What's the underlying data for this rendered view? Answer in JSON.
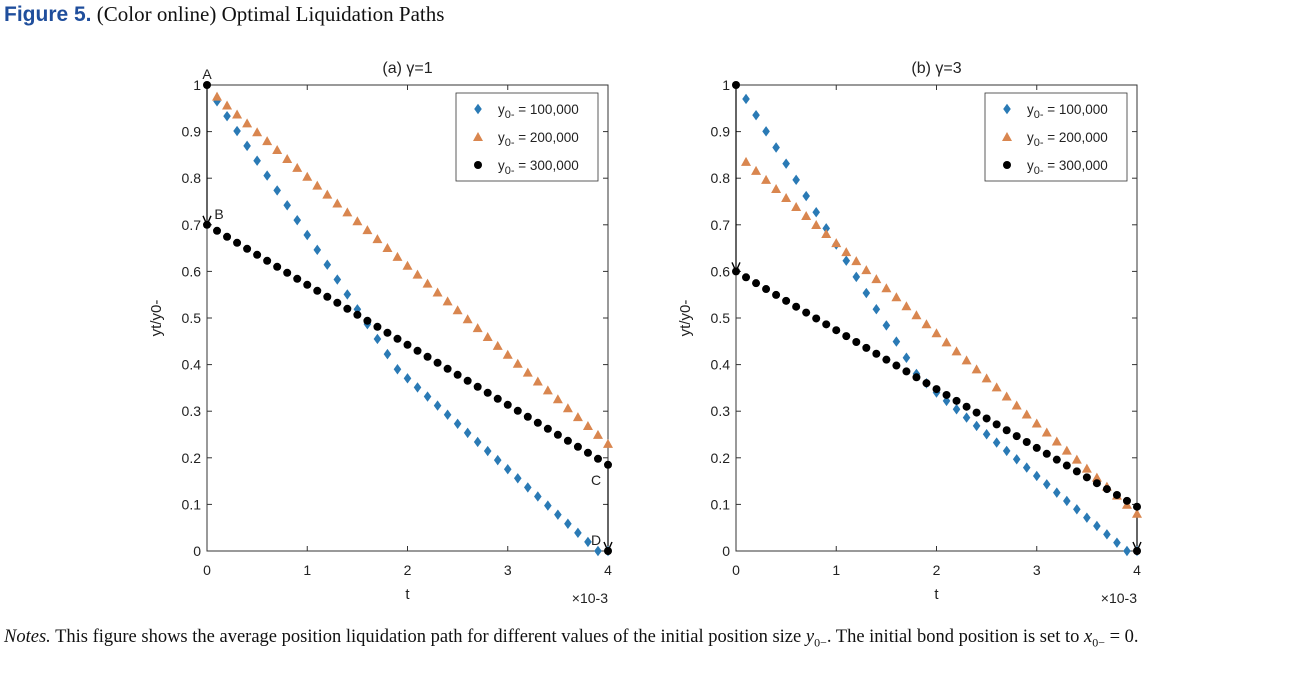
{
  "figure": {
    "label": "Figure 5.",
    "caption": "(Color online) Optimal Liquidation Paths"
  },
  "notes": {
    "label": "Notes.",
    "text_1": "This figure shows the average position liquidation path for different values of the initial position size",
    "var_1": "y",
    "var_1_sub": "0−",
    "text_2": ". The initial bond position is set to",
    "var_2": "x",
    "var_2_sub": "0−",
    "text_3": " = 0."
  },
  "colors": {
    "series_1": "#2a7ab5",
    "series_2": "#d9864f",
    "series_3": "#000000"
  },
  "chart_data": [
    {
      "type": "scatter",
      "title": "(a) γ=1",
      "xlabel": "t",
      "ylabel": "yt/y0-",
      "x_exponent_label": "×10-3",
      "xlim": [
        0,
        4
      ],
      "ylim": [
        0,
        1
      ],
      "xticks": [
        0,
        1,
        2,
        3,
        4
      ],
      "yticks": [
        0,
        0.1,
        0.2,
        0.3,
        0.4,
        0.5,
        0.6,
        0.7,
        0.8,
        0.9,
        1
      ],
      "ytick_labels": [
        "0",
        "0.1",
        "0.2",
        "0.3",
        "0.4",
        "0.5",
        "0.6",
        "0.7",
        "0.8",
        "0.9",
        "1"
      ],
      "grid": false,
      "legend_position": "top-right",
      "series": [
        {
          "name": "y0- = 100,000",
          "marker": "diamond",
          "x_start": 0.1,
          "x_end": 4.0,
          "y_start": 0.965,
          "y_end": 0.0,
          "points": 40,
          "plateau_end": 0.0,
          "kink": {
            "x": 1.7,
            "y": 0.455,
            "x2": 1.9,
            "y2": 0.39
          }
        },
        {
          "name": "y0- = 200,000",
          "marker": "triangle",
          "x_start": 0.1,
          "x_end": 4.0,
          "y_start": 0.975,
          "y_end": 0.23,
          "points": 40
        },
        {
          "name": "y0- = 300,000",
          "marker": "circle",
          "x_start": 0.0,
          "x_end": 4.0,
          "y_start": 0.7,
          "y_end": 0.185,
          "points": 41,
          "pre_jump": {
            "x": 0.0,
            "y": 1.0
          }
        }
      ],
      "annotations": [
        {
          "text": "A",
          "x": 0.0,
          "y": 1.0
        },
        {
          "text": "B",
          "x": 0.0,
          "y": 0.7
        },
        {
          "text": "C",
          "x": 4.0,
          "y": 0.185
        },
        {
          "text": "D",
          "x": 4.0,
          "y": 0.0
        }
      ],
      "jump_arrows": [
        {
          "x": 0.0,
          "from": 1.0,
          "to": 0.7
        },
        {
          "x": 4.0,
          "from": 0.185,
          "to": 0.0
        }
      ]
    },
    {
      "type": "scatter",
      "title": "(b) γ=3",
      "xlabel": "t",
      "ylabel": "yt/y0-",
      "x_exponent_label": "×10-3",
      "xlim": [
        0,
        4
      ],
      "ylim": [
        0,
        1
      ],
      "xticks": [
        0,
        1,
        2,
        3,
        4
      ],
      "yticks": [
        0,
        0.1,
        0.2,
        0.3,
        0.4,
        0.5,
        0.6,
        0.7,
        0.8,
        0.9,
        1
      ],
      "ytick_labels": [
        "0",
        "0.1",
        "0.2",
        "0.3",
        "0.4",
        "0.5",
        "0.6",
        "0.7",
        "0.8",
        "0.9",
        "1"
      ],
      "grid": false,
      "legend_position": "top-right",
      "series": [
        {
          "name": "y0- = 100,000",
          "marker": "diamond",
          "x_start": 0.1,
          "x_end": 4.0,
          "y_start": 0.97,
          "y_end": 0.0,
          "points": 40,
          "kink": {
            "x": 1.8,
            "y": 0.38,
            "x2": 2.0,
            "y2": 0.34
          }
        },
        {
          "name": "y0- = 200,000",
          "marker": "triangle",
          "x_start": 0.1,
          "x_end": 4.0,
          "y_start": 0.835,
          "y_end": 0.08,
          "points": 40
        },
        {
          "name": "y0- = 300,000",
          "marker": "circle",
          "x_start": 0.0,
          "x_end": 4.0,
          "y_start": 0.6,
          "y_end": 0.095,
          "points": 41,
          "pre_jump": {
            "x": 0.0,
            "y": 1.0
          }
        }
      ],
      "annotations": [],
      "jump_arrows": [
        {
          "x": 0.0,
          "from": 1.0,
          "to": 0.6
        },
        {
          "x": 4.0,
          "from": 0.095,
          "to": 0.0
        }
      ]
    }
  ]
}
